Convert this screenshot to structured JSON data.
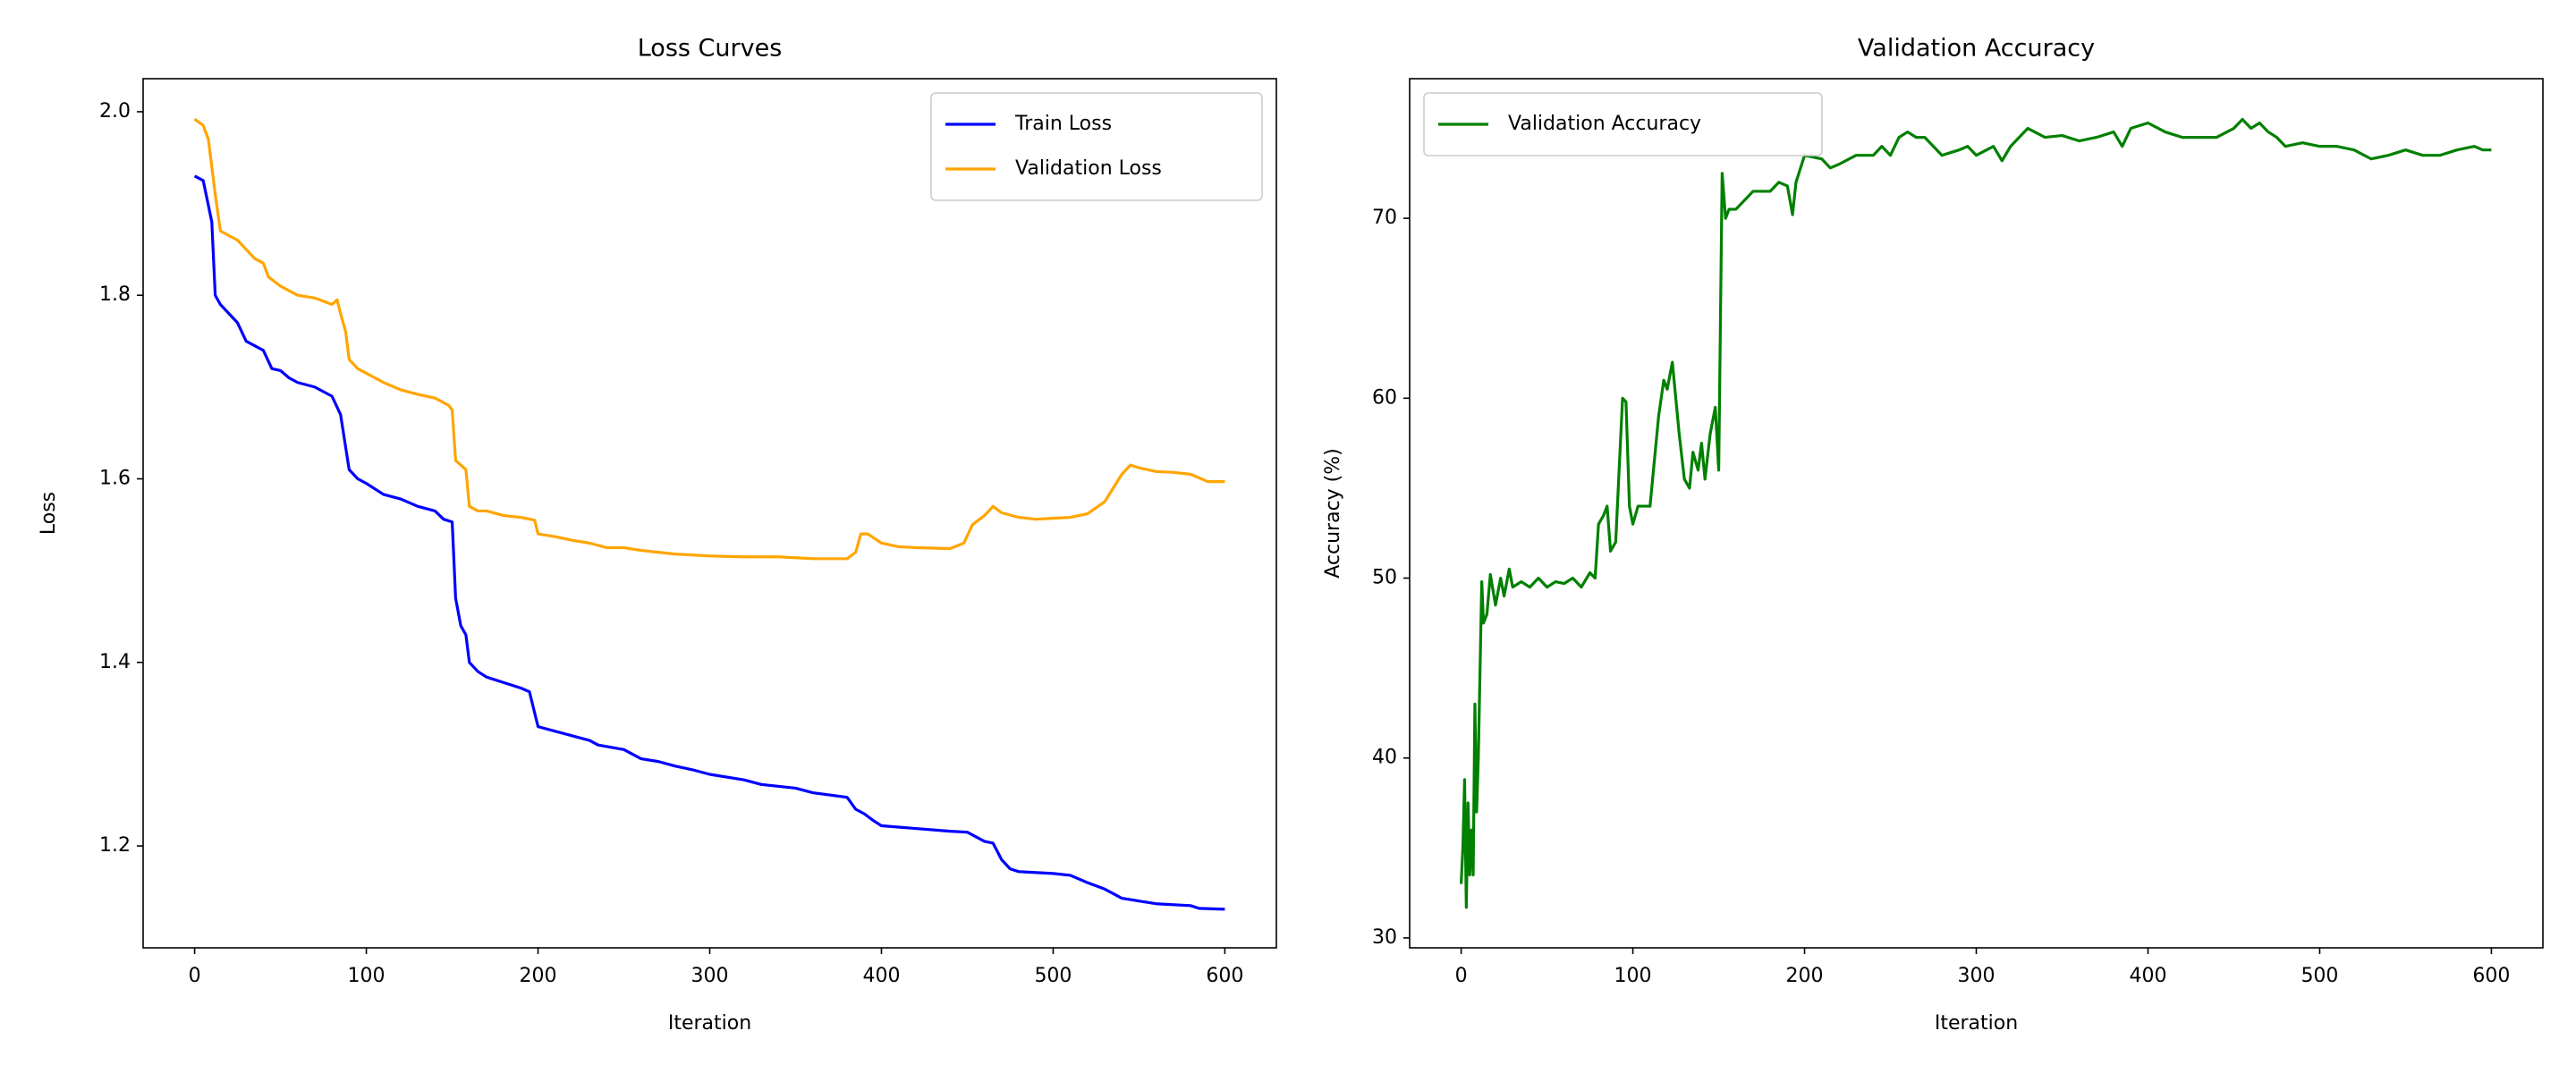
{
  "chart_data": [
    {
      "type": "line",
      "title": "Loss Curves",
      "xlabel": "Iteration",
      "ylabel": "Loss",
      "xlim": [
        -30,
        630
      ],
      "ylim": [
        1.089,
        2.036
      ],
      "xticks": [
        0,
        100,
        200,
        300,
        400,
        500,
        600
      ],
      "yticks": [
        1.2,
        1.4,
        1.6,
        1.8,
        {
          "value": 2,
          "label": "2.0"
        }
      ],
      "grid": false,
      "legend": "upper right",
      "series": [
        {
          "name": "Train Loss",
          "color": "#0000ff",
          "x": [
            0,
            5,
            10,
            12,
            15,
            20,
            25,
            30,
            35,
            40,
            45,
            50,
            55,
            60,
            70,
            80,
            85,
            90,
            95,
            100,
            110,
            120,
            130,
            140,
            145,
            150,
            152,
            155,
            158,
            160,
            165,
            170,
            180,
            190,
            195,
            200,
            210,
            220,
            230,
            235,
            250,
            260,
            270,
            280,
            290,
            300,
            320,
            330,
            350,
            360,
            380,
            385,
            390,
            395,
            400,
            420,
            440,
            450,
            460,
            465,
            470,
            475,
            480,
            500,
            510,
            520,
            530,
            540,
            550,
            560,
            580,
            585,
            600
          ],
          "values": [
            1.93,
            1.925,
            1.88,
            1.8,
            1.79,
            1.78,
            1.77,
            1.75,
            1.745,
            1.74,
            1.72,
            1.718,
            1.71,
            1.705,
            1.7,
            1.69,
            1.67,
            1.61,
            1.6,
            1.595,
            1.583,
            1.578,
            1.57,
            1.565,
            1.556,
            1.553,
            1.47,
            1.44,
            1.43,
            1.4,
            1.39,
            1.384,
            1.378,
            1.372,
            1.368,
            1.33,
            1.325,
            1.32,
            1.315,
            1.31,
            1.305,
            1.295,
            1.292,
            1.287,
            1.283,
            1.278,
            1.272,
            1.267,
            1.263,
            1.258,
            1.253,
            1.24,
            1.235,
            1.228,
            1.222,
            1.219,
            1.216,
            1.215,
            1.205,
            1.203,
            1.185,
            1.175,
            1.172,
            1.17,
            1.168,
            1.16,
            1.153,
            1.143,
            1.14,
            1.137,
            1.135,
            1.132,
            1.131
          ]
        },
        {
          "name": "Validation Loss",
          "color": "#ffa500",
          "x": [
            0,
            5,
            8,
            10,
            12,
            15,
            20,
            25,
            30,
            35,
            40,
            43,
            50,
            60,
            70,
            80,
            83,
            85,
            88,
            90,
            95,
            100,
            110,
            120,
            130,
            140,
            148,
            150,
            152,
            155,
            158,
            160,
            165,
            170,
            180,
            190,
            198,
            200,
            210,
            220,
            230,
            240,
            250,
            260,
            270,
            280,
            300,
            320,
            340,
            360,
            380,
            385,
            388,
            392,
            400,
            410,
            420,
            440,
            448,
            453,
            460,
            465,
            470,
            480,
            490,
            500,
            510,
            520,
            530,
            535,
            540,
            545,
            550,
            560,
            570,
            580,
            590,
            600
          ],
          "values": [
            1.992,
            1.985,
            1.97,
            1.94,
            1.91,
            1.87,
            1.865,
            1.86,
            1.85,
            1.84,
            1.835,
            1.82,
            1.81,
            1.8,
            1.797,
            1.79,
            1.795,
            1.78,
            1.76,
            1.73,
            1.72,
            1.715,
            1.705,
            1.697,
            1.692,
            1.688,
            1.68,
            1.675,
            1.62,
            1.615,
            1.61,
            1.57,
            1.565,
            1.565,
            1.56,
            1.558,
            1.555,
            1.54,
            1.537,
            1.533,
            1.53,
            1.525,
            1.525,
            1.522,
            1.52,
            1.518,
            1.516,
            1.515,
            1.515,
            1.513,
            1.513,
            1.52,
            1.54,
            1.54,
            1.53,
            1.526,
            1.525,
            1.524,
            1.53,
            1.55,
            1.56,
            1.57,
            1.563,
            1.558,
            1.556,
            1.557,
            1.558,
            1.562,
            1.575,
            1.59,
            1.605,
            1.615,
            1.612,
            1.608,
            1.607,
            1.605,
            1.597,
            1.597
          ]
        }
      ]
    },
    {
      "type": "line",
      "title": "Validation Accuracy",
      "xlabel": "Iteration",
      "ylabel": "Accuracy (%)",
      "xlim": [
        -30,
        630
      ],
      "ylim": [
        29.45,
        77.76
      ],
      "xticks": [
        0,
        100,
        200,
        300,
        400,
        500,
        600
      ],
      "yticks": [
        30,
        40,
        50,
        60,
        70
      ],
      "grid": false,
      "legend": "upper left",
      "series": [
        {
          "name": "Validation Accuracy",
          "color": "#008000",
          "x": [
            0,
            1,
            2,
            3,
            4,
            5,
            6,
            7,
            8,
            9,
            10,
            12,
            13,
            15,
            17,
            20,
            23,
            25,
            28,
            30,
            35,
            40,
            45,
            50,
            55,
            60,
            65,
            70,
            75,
            78,
            80,
            83,
            85,
            87,
            90,
            92,
            94,
            96,
            98,
            100,
            103,
            107,
            110,
            115,
            118,
            120,
            123,
            125,
            127,
            130,
            133,
            135,
            138,
            140,
            142,
            145,
            148,
            150,
            152,
            154,
            156,
            160,
            165,
            170,
            175,
            180,
            185,
            190,
            193,
            195,
            200,
            210,
            215,
            220,
            230,
            240,
            245,
            250,
            255,
            260,
            265,
            270,
            275,
            280,
            290,
            295,
            300,
            310,
            315,
            320,
            330,
            340,
            350,
            360,
            370,
            380,
            385,
            390,
            400,
            410,
            420,
            440,
            450,
            455,
            460,
            465,
            470,
            475,
            480,
            490,
            500,
            510,
            520,
            530,
            540,
            550,
            560,
            570,
            580,
            590,
            595,
            600
          ],
          "values": [
            33,
            35,
            38.8,
            31.7,
            37.5,
            33.5,
            36,
            33.5,
            43,
            37,
            40,
            49.8,
            47.5,
            48,
            50.2,
            48.5,
            50,
            49,
            50.5,
            49.5,
            49.8,
            49.5,
            50,
            49.5,
            49.8,
            49.7,
            50,
            49.5,
            50.3,
            50,
            53,
            53.5,
            54,
            51.5,
            52,
            56,
            60,
            59.8,
            54,
            53,
            54,
            54,
            54,
            59,
            61,
            60.5,
            62,
            60,
            58,
            55.5,
            55,
            57,
            56,
            57.5,
            55.5,
            58,
            59.5,
            56,
            72.5,
            70,
            70.5,
            70.5,
            71,
            71.5,
            71.5,
            71.5,
            72,
            71.8,
            70.2,
            72,
            73.5,
            73.3,
            72.8,
            73,
            73.5,
            73.5,
            74,
            73.5,
            74.5,
            74.8,
            74.5,
            74.5,
            74,
            73.5,
            73.8,
            74,
            73.5,
            74,
            73.2,
            74,
            75,
            74.5,
            74.6,
            74.3,
            74.5,
            74.8,
            74,
            75,
            75.3,
            74.8,
            74.5,
            74.5,
            75,
            75.5,
            75,
            75.3,
            74.8,
            74.5,
            74,
            74.2,
            74,
            74,
            73.8,
            73.3,
            73.5,
            73.8,
            73.5,
            73.5,
            73.8,
            74,
            73.8,
            73.8
          ]
        }
      ]
    }
  ]
}
